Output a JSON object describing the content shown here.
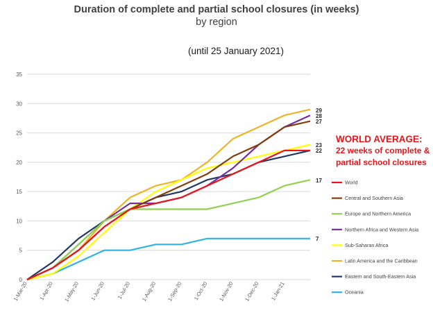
{
  "chart_data": {
    "type": "line",
    "title": "Duration of complete and partial school closures (in weeks)",
    "subtitle": "by region",
    "note": "(until 25 January 2021)",
    "x": [
      "1-Mar-20",
      "1-Apr-20",
      "1-May-20",
      "1-Jun-20",
      "1-Jul-20",
      "1-Aug-20",
      "1-Sep-20",
      "1-Oct-20",
      "1-Nov-20",
      "1-Dec-20",
      "1-Jan-21",
      "25-Jan-21"
    ],
    "x_tick_labels": [
      "1-Mar-20",
      "1-Apr-20",
      "1-May-20",
      "1-Jun-20",
      "1-Jul-20",
      "1-Aug-20",
      "1-Sep-20",
      "1-Oct-20",
      "1-Nov-20",
      "1-Dec-20",
      "1-Jan-21"
    ],
    "y_ticks": [
      0,
      5,
      10,
      15,
      20,
      25,
      30,
      35
    ],
    "ylim": [
      0,
      35
    ],
    "grid": true,
    "legend_position": "right",
    "series": [
      {
        "name": "World",
        "color": "#e8151b",
        "values": [
          0,
          2,
          5,
          9,
          12,
          13,
          14,
          16,
          18,
          20,
          22,
          22
        ]
      },
      {
        "name": "Central and Southern Asia",
        "color": "#843c0c",
        "values": [
          0,
          2,
          5,
          9,
          12,
          14,
          16,
          18,
          21,
          23,
          26,
          27
        ]
      },
      {
        "name": "Europe and Northern America",
        "color": "#92d050",
        "values": [
          0,
          2,
          6,
          10,
          12,
          12,
          12,
          12,
          13,
          14,
          16,
          17
        ]
      },
      {
        "name": "Northern Africa and Western Asia",
        "color": "#7030a0",
        "values": [
          0,
          2,
          6,
          10,
          13,
          13,
          14,
          16,
          19,
          23,
          26,
          28
        ]
      },
      {
        "name": "Sub-Saharan Africa",
        "color": "#ffff00",
        "values": [
          0,
          1,
          4,
          8,
          12,
          15,
          17,
          19,
          20,
          21,
          22,
          23
        ]
      },
      {
        "name": "Latin America and the Caribbean",
        "color": "#f0b323",
        "values": [
          0,
          2,
          5,
          10,
          14,
          16,
          17,
          20,
          24,
          26,
          28,
          29
        ]
      },
      {
        "name": "Eastern and South-Eastern Asia",
        "color": "#203864",
        "values": [
          0,
          3,
          7,
          10,
          12,
          14,
          15,
          17,
          18,
          20,
          21,
          22
        ]
      },
      {
        "name": "Oceania",
        "color": "#2eb4e0",
        "values": [
          0,
          1,
          3,
          5,
          5,
          6,
          6,
          7,
          7,
          7,
          7,
          7
        ]
      }
    ],
    "end_labels": [
      "29",
      "28",
      "27",
      "23",
      "22",
      "17",
      "7"
    ],
    "annotation": {
      "heading": "WORLD AVERAGE:",
      "lines": [
        "22 weeks of complete &",
        "partial school closures"
      ],
      "color": "#e8151b"
    }
  }
}
